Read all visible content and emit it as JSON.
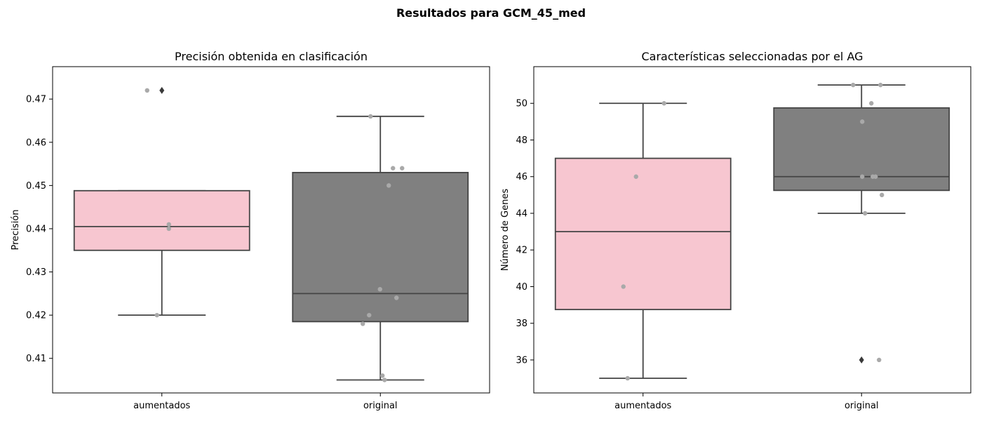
{
  "figure": {
    "suptitle": "Resultados para GCM_45_med"
  },
  "colors": {
    "aumentados": "#f7c6d0",
    "original": "#808080",
    "box_edge": "#444444",
    "points": "#a9a9a9",
    "outlier": "#3a3a3a"
  },
  "chart_data": [
    {
      "type": "box",
      "title": "Precisión obtenida en clasificación",
      "xlabel": "",
      "ylabel": "Precisión",
      "categories": [
        "aumentados",
        "original"
      ],
      "ylim": [
        0.402,
        0.4775
      ],
      "yticks": [
        0.41,
        0.42,
        0.43,
        0.44,
        0.45,
        0.46,
        0.47
      ],
      "ytick_labels": [
        "0.41",
        "0.42",
        "0.43",
        "0.44",
        "0.45",
        "0.46",
        "0.47"
      ],
      "boxes": [
        {
          "category": "aumentados",
          "whisker_low": 0.42,
          "q1": 0.435,
          "median": 0.4405,
          "q3": 0.4488,
          "whisker_high": 0.4488,
          "outliers": [
            0.472
          ]
        },
        {
          "category": "original",
          "whisker_low": 0.405,
          "q1": 0.4185,
          "median": 0.425,
          "q3": 0.453,
          "whisker_high": 0.466,
          "outliers": []
        }
      ],
      "points": [
        {
          "category": "aumentados",
          "values": [
            0.472,
            0.441,
            0.44,
            0.42
          ]
        },
        {
          "category": "original",
          "values": [
            0.466,
            0.454,
            0.454,
            0.45,
            0.426,
            0.424,
            0.42,
            0.418,
            0.406,
            0.405
          ]
        }
      ]
    },
    {
      "type": "box",
      "title": "Características seleccionadas por el AG",
      "xlabel": "",
      "ylabel": "Número de Genes",
      "categories": [
        "aumentados",
        "original"
      ],
      "ylim": [
        34.2,
        52.0
      ],
      "yticks": [
        36,
        38,
        40,
        42,
        44,
        46,
        48,
        50
      ],
      "ytick_labels": [
        "36",
        "38",
        "40",
        "42",
        "44",
        "46",
        "48",
        "50"
      ],
      "boxes": [
        {
          "category": "aumentados",
          "whisker_low": 35,
          "q1": 38.75,
          "median": 43,
          "q3": 47,
          "whisker_high": 50,
          "outliers": []
        },
        {
          "category": "original",
          "whisker_low": 44,
          "q1": 45.25,
          "median": 46,
          "q3": 49.75,
          "whisker_high": 51,
          "outliers": [
            36
          ]
        }
      ],
      "points": [
        {
          "category": "aumentados",
          "values": [
            50,
            46,
            40,
            35
          ]
        },
        {
          "category": "original",
          "values": [
            51,
            51,
            50,
            49,
            46,
            46,
            46,
            45,
            44,
            36
          ]
        }
      ]
    }
  ]
}
